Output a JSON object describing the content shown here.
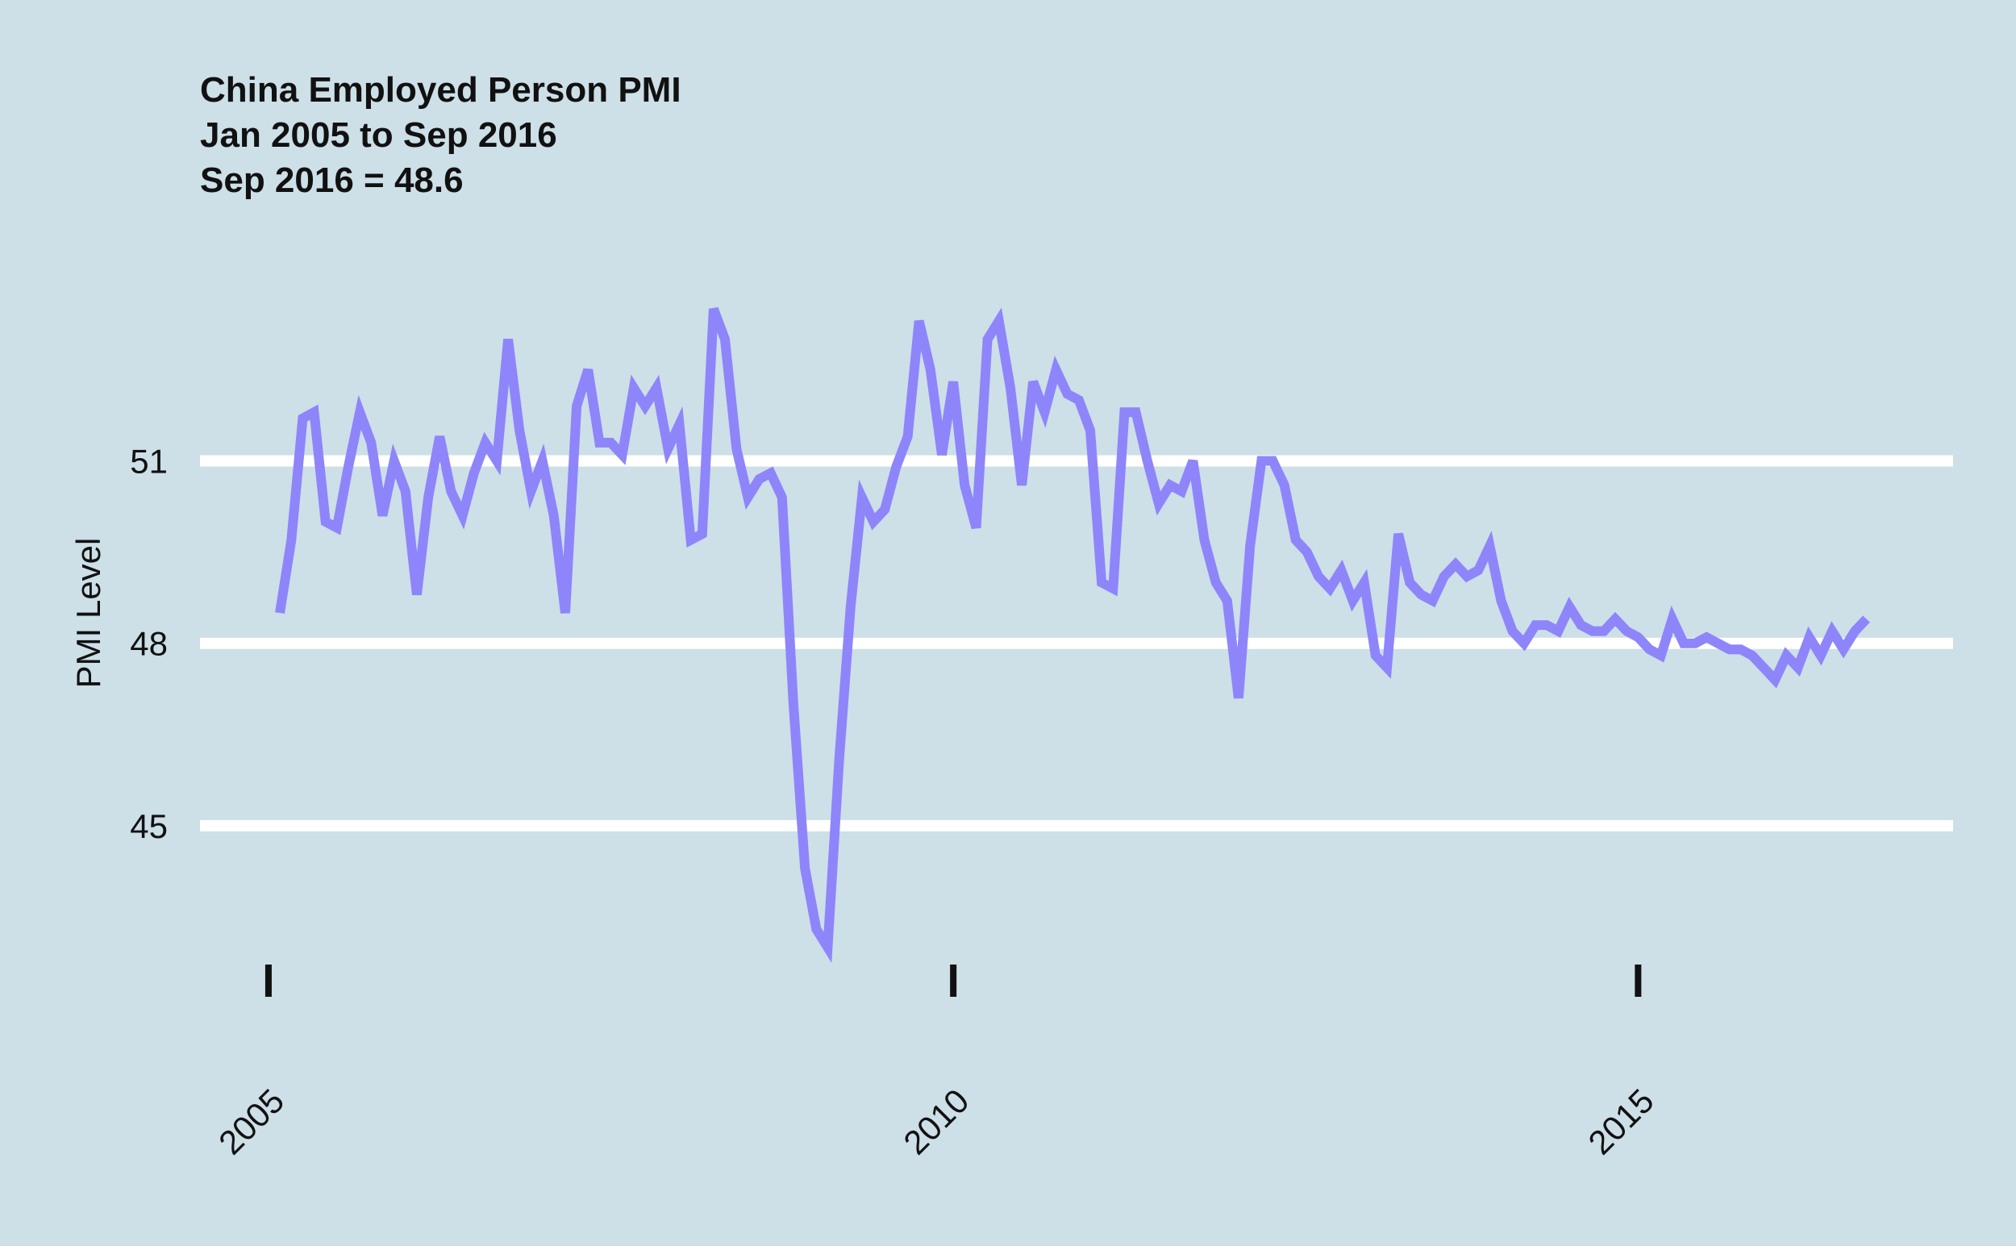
{
  "chart_data": {
    "type": "line",
    "title_lines": [
      "China Employed Person PMI",
      "Jan 2005 to Sep 2016",
      "Sep 2016 = 48.6"
    ],
    "xlabel": "",
    "ylabel": "PMI Level",
    "x_ticks": [
      2005,
      2010,
      2015
    ],
    "y_ticks": [
      45,
      48,
      51
    ],
    "xlim": [
      2004.5,
      2017.3
    ],
    "ylim": [
      42.4,
      54.6
    ],
    "grid": "horizontal",
    "legend": "none",
    "colors": {
      "background": "#cddfe7",
      "line": "#8e85fb",
      "grid": "#ffffff"
    },
    "series": [
      {
        "x": [
          2005.083,
          2005.167,
          2005.25,
          2005.333,
          2005.417,
          2005.5,
          2005.583,
          2005.667,
          2005.75,
          2005.833,
          2005.917,
          2006.0,
          2006.083,
          2006.167,
          2006.25,
          2006.333,
          2006.417,
          2006.5,
          2006.583,
          2006.667,
          2006.75,
          2006.833,
          2006.917,
          2007.0,
          2007.083,
          2007.167,
          2007.25,
          2007.333,
          2007.417,
          2007.5,
          2007.583,
          2007.667,
          2007.75,
          2007.833,
          2007.917,
          2008.0,
          2008.083,
          2008.167,
          2008.25,
          2008.333,
          2008.417,
          2008.5,
          2008.583,
          2008.667,
          2008.75,
          2008.833,
          2008.917,
          2009.0,
          2009.083,
          2009.167,
          2009.25,
          2009.333,
          2009.417,
          2009.5,
          2009.583,
          2009.667,
          2009.75,
          2009.833,
          2009.917,
          2010.0,
          2010.083,
          2010.167,
          2010.25,
          2010.333,
          2010.417,
          2010.5,
          2010.583,
          2010.667,
          2010.75,
          2010.833,
          2010.917,
          2011.0,
          2011.083,
          2011.167,
          2011.25,
          2011.333,
          2011.417,
          2011.5,
          2011.583,
          2011.667,
          2011.75,
          2011.833,
          2011.917,
          2012.0,
          2012.083,
          2012.167,
          2012.25,
          2012.333,
          2012.417,
          2012.5,
          2012.583,
          2012.667,
          2012.75,
          2012.833,
          2012.917,
          2013.0,
          2013.083,
          2013.167,
          2013.25,
          2013.333,
          2013.417,
          2013.5,
          2013.583,
          2013.667,
          2013.75,
          2013.833,
          2013.917,
          2014.0,
          2014.083,
          2014.167,
          2014.25,
          2014.333,
          2014.417,
          2014.5,
          2014.583,
          2014.667,
          2014.75,
          2014.833,
          2014.917,
          2015.0,
          2015.083,
          2015.167,
          2015.25,
          2015.333,
          2015.417,
          2015.5,
          2015.583,
          2015.667,
          2015.75,
          2015.833,
          2015.917,
          2016.0,
          2016.083,
          2016.167,
          2016.25,
          2016.333,
          2016.417,
          2016.5,
          2016.583,
          2016.667
        ],
        "y": [
          48.5,
          49.7,
          51.7,
          51.8,
          50.0,
          49.9,
          50.9,
          51.8,
          51.3,
          50.1,
          51.0,
          50.5,
          48.8,
          50.4,
          51.4,
          50.5,
          50.1,
          50.8,
          51.3,
          51.0,
          53.0,
          51.5,
          50.5,
          51.0,
          50.1,
          48.5,
          51.9,
          52.5,
          51.3,
          51.3,
          51.1,
          52.2,
          51.9,
          52.2,
          51.2,
          51.6,
          49.7,
          49.8,
          53.5,
          53.0,
          51.2,
          50.4,
          50.7,
          50.8,
          50.4,
          47.0,
          44.3,
          43.3,
          43.0,
          46.1,
          48.6,
          50.4,
          50.0,
          50.2,
          50.9,
          51.4,
          53.3,
          52.5,
          51.1,
          52.3,
          50.6,
          49.9,
          53.0,
          53.3,
          52.2,
          50.6,
          52.3,
          51.8,
          52.5,
          52.1,
          52.0,
          51.5,
          49.0,
          48.9,
          51.8,
          51.8,
          51.0,
          50.3,
          50.6,
          50.5,
          51.0,
          49.7,
          49.0,
          48.7,
          47.1,
          49.6,
          51.0,
          51.0,
          50.6,
          49.7,
          49.5,
          49.1,
          48.9,
          49.2,
          48.7,
          49.0,
          47.8,
          47.6,
          49.8,
          49.0,
          48.8,
          48.7,
          49.1,
          49.3,
          49.1,
          49.2,
          49.6,
          48.7,
          48.2,
          48.0,
          48.3,
          48.3,
          48.2,
          48.6,
          48.3,
          48.2,
          48.2,
          48.4,
          48.2,
          48.1,
          47.9,
          47.8,
          48.4,
          48.0,
          48.0,
          48.1,
          48.0,
          47.9,
          47.9,
          47.8,
          47.6,
          47.4,
          47.8,
          47.6,
          48.1,
          47.8,
          48.2,
          47.9,
          48.2,
          48.4
        ]
      }
    ]
  }
}
